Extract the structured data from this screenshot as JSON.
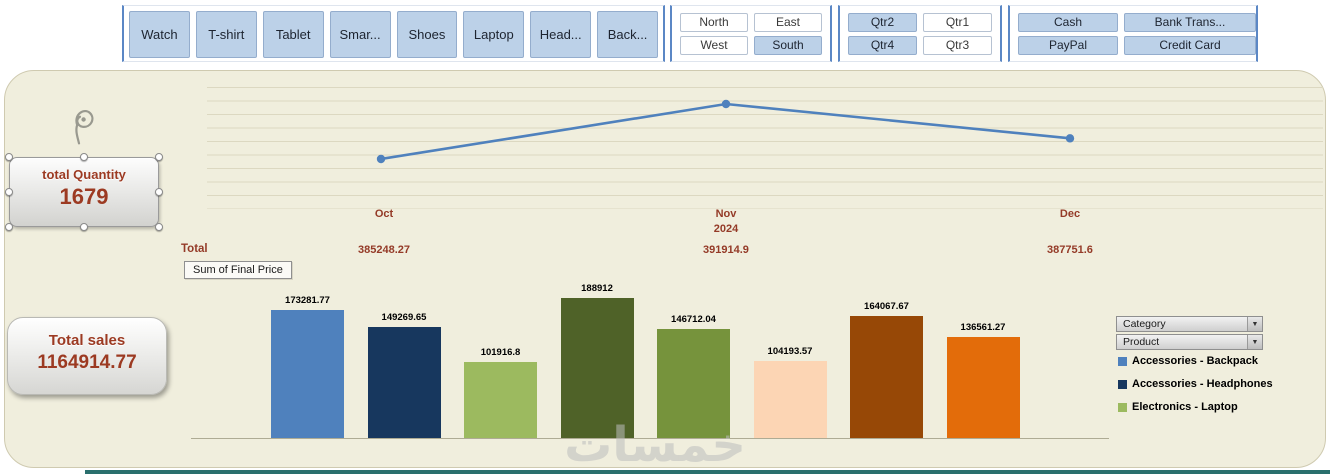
{
  "slicers": {
    "products": {
      "items": [
        {
          "label": "Watch",
          "selected": true
        },
        {
          "label": "T-shirt",
          "selected": true
        },
        {
          "label": "Tablet",
          "selected": true
        },
        {
          "label": "Smar...",
          "selected": true
        },
        {
          "label": "Shoes",
          "selected": true
        },
        {
          "label": "Laptop",
          "selected": true
        },
        {
          "label": "Head...",
          "selected": true
        },
        {
          "label": "Back...",
          "selected": true
        }
      ]
    },
    "regions": {
      "items": [
        {
          "label": "North",
          "selected": false
        },
        {
          "label": "East",
          "selected": false
        },
        {
          "label": "West",
          "selected": false
        },
        {
          "label": "South",
          "selected": true
        }
      ]
    },
    "quarters": {
      "items": [
        {
          "label": "Qtr2",
          "selected": true
        },
        {
          "label": "Qtr1",
          "selected": false
        },
        {
          "label": "Qtr4",
          "selected": true
        },
        {
          "label": "Qtr3",
          "selected": false
        }
      ]
    },
    "payments": {
      "items": [
        {
          "label": "Cash",
          "selected": true
        },
        {
          "label": "Bank Trans...",
          "selected": true
        },
        {
          "label": "PayPal",
          "selected": true
        },
        {
          "label": "Credit Card",
          "selected": true
        }
      ]
    }
  },
  "cards": {
    "quantity": {
      "title": "total Quantity",
      "value": "1679"
    },
    "sales": {
      "title": "Total sales",
      "value": "1164914.77"
    }
  },
  "pivot": {
    "total_label": "Total",
    "field_button": "Sum of Final Price"
  },
  "legend": {
    "category_dropdown": "Category",
    "product_dropdown": "Product",
    "items": [
      {
        "label": "Accessories - Backpack",
        "color": "#4f81bd"
      },
      {
        "label": "Accessories - Headphones",
        "color": "#17375e"
      },
      {
        "label": "Electronics - Laptop",
        "color": "#9cba5f"
      }
    ]
  },
  "watermark": "خمسات",
  "colors": {
    "line": "#4f81bd",
    "panel_bg": "#f0eedd",
    "slicer_selected": "#bcd1e8",
    "maroon_text": "#943a27"
  },
  "chart_data": [
    {
      "type": "line",
      "x": [
        "Oct",
        "Nov",
        "Dec"
      ],
      "x_sublabel": "2024",
      "values": [
        385248.27,
        391914.9,
        387751.6
      ],
      "value_labels": [
        "385248.27",
        "391914.9",
        "387751.6"
      ],
      "series_name": "Sum of Final Price by month",
      "color": "#4f81bd",
      "grid": true,
      "legend_position": "none"
    },
    {
      "type": "bar",
      "title": "Sum of Final Price",
      "categories": [
        "",
        "",
        "",
        "",
        "",
        "",
        "",
        ""
      ],
      "values": [
        173281.77,
        149269.65,
        101916.8,
        188912,
        146712.04,
        104193.57,
        164067.67,
        136561.27
      ],
      "value_labels": [
        "173281.77",
        "149269.65",
        "101916.8",
        "188912",
        "146712.04",
        "104193.57",
        "164067.67",
        "136561.27"
      ],
      "colors": [
        "#4f81bd",
        "#17375e",
        "#9cba5f",
        "#4f6228",
        "#76933c",
        "#fcd5b4",
        "#974806",
        "#e36c0a"
      ],
      "ylim": [
        0,
        200000
      ],
      "grid": false,
      "legend_position": "right"
    }
  ]
}
